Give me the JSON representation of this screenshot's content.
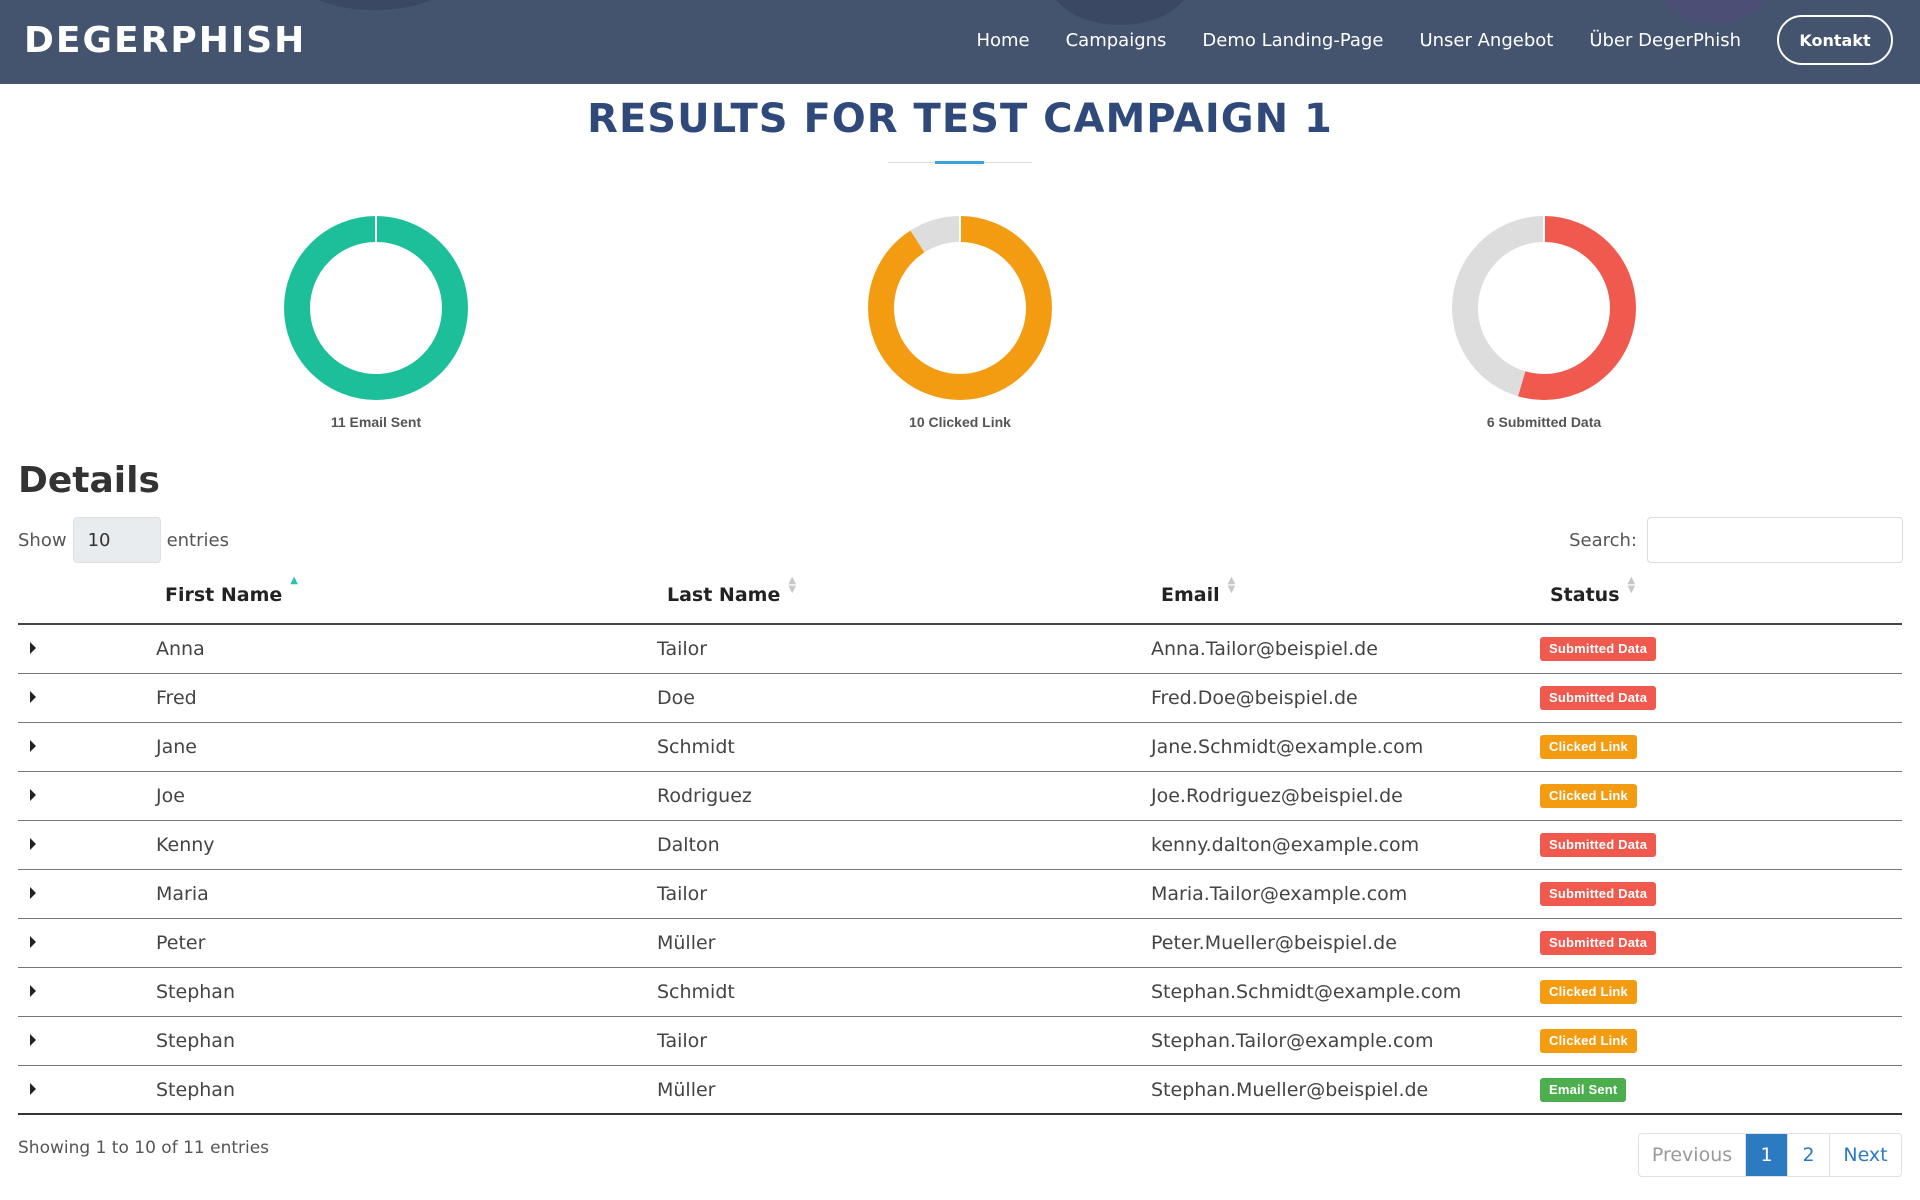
{
  "nav": {
    "brand": "DEGERPHISH",
    "links": [
      "Home",
      "Campaigns",
      "Demo Landing-Page",
      "Unser Angebot",
      "Über DegerPhish"
    ],
    "contact_label": "Kontakt"
  },
  "page": {
    "title": "RESULTS FOR TEST CAMPAIGN 1"
  },
  "chart_data": [
    {
      "type": "pie",
      "title": "",
      "categories": [
        "Email Sent",
        "Remaining"
      ],
      "values": [
        11,
        0
      ],
      "colors": [
        "#1dbf9a",
        "#dddddd"
      ],
      "label": "11 Email Sent"
    },
    {
      "type": "pie",
      "title": "",
      "categories": [
        "Clicked Link",
        "Remaining"
      ],
      "values": [
        10,
        1
      ],
      "colors": [
        "#f39c12",
        "#dddddd"
      ],
      "label": "10 Clicked Link"
    },
    {
      "type": "pie",
      "title": "",
      "categories": [
        "Submitted Data",
        "Remaining"
      ],
      "values": [
        6,
        5
      ],
      "colors": [
        "#f05a4e",
        "#dddddd"
      ],
      "label": "6 Submitted Data"
    }
  ],
  "details": {
    "heading": "Details",
    "show_label": "Show",
    "entries_value": "10",
    "entries_label": "entries",
    "search_label": "Search:",
    "search_value": ""
  },
  "table": {
    "columns": [
      "First Name",
      "Last Name",
      "Email",
      "Status"
    ],
    "rows": [
      {
        "first": "Anna",
        "last": "Tailor",
        "email": "Anna.Tailor@beispiel.de",
        "status": "Submitted Data"
      },
      {
        "first": "Fred",
        "last": "Doe",
        "email": "Fred.Doe@beispiel.de",
        "status": "Submitted Data"
      },
      {
        "first": "Jane",
        "last": "Schmidt",
        "email": "Jane.Schmidt@example.com",
        "status": "Clicked Link"
      },
      {
        "first": "Joe",
        "last": "Rodriguez",
        "email": "Joe.Rodriguez@beispiel.de",
        "status": "Clicked Link"
      },
      {
        "first": "Kenny",
        "last": "Dalton",
        "email": "kenny.dalton@example.com",
        "status": "Submitted Data"
      },
      {
        "first": "Maria",
        "last": "Tailor",
        "email": "Maria.Tailor@example.com",
        "status": "Submitted Data"
      },
      {
        "first": "Peter",
        "last": "Müller",
        "email": "Peter.Mueller@beispiel.de",
        "status": "Submitted Data"
      },
      {
        "first": "Stephan",
        "last": "Schmidt",
        "email": "Stephan.Schmidt@example.com",
        "status": "Clicked Link"
      },
      {
        "first": "Stephan",
        "last": "Tailor",
        "email": "Stephan.Tailor@example.com",
        "status": "Clicked Link"
      },
      {
        "first": "Stephan",
        "last": "Müller",
        "email": "Stephan.Mueller@beispiel.de",
        "status": "Email Sent"
      }
    ],
    "status_colors": {
      "Submitted Data": "#f05a4e",
      "Clicked Link": "#f39c12",
      "Email Sent": "#4cae4c"
    }
  },
  "footer": {
    "info": "Showing 1 to 10 of 11 entries",
    "pagination": {
      "previous": "Previous",
      "pages": [
        "1",
        "2"
      ],
      "next": "Next"
    }
  }
}
